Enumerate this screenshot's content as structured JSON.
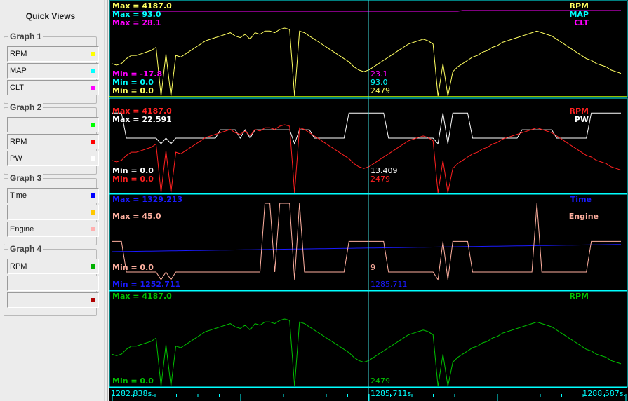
{
  "quick_views": {
    "title": "Quick Views",
    "groups": [
      {
        "title": "Graph 1",
        "items": [
          {
            "label": "RPM",
            "color": "#ffff00"
          },
          {
            "label": "MAP",
            "color": "#00ffff"
          },
          {
            "label": "CLT",
            "color": "#ff00ff"
          }
        ]
      },
      {
        "title": "Graph 2",
        "items": [
          {
            "label": "",
            "color": "#00ff00"
          },
          {
            "label": "RPM",
            "color": "#ff0000"
          },
          {
            "label": "PW",
            "color": "#ffffff"
          }
        ]
      },
      {
        "title": "Graph 3",
        "items": [
          {
            "label": "Time",
            "color": "#0000ff"
          },
          {
            "label": "",
            "color": "#ffc800"
          },
          {
            "label": "Engine",
            "color": "#ffafaf"
          }
        ]
      },
      {
        "title": "Graph 4",
        "items": [
          {
            "label": "RPM",
            "color": "#00b000"
          },
          {
            "label": "",
            "color": ""
          },
          {
            "label": "",
            "color": "#b00000"
          }
        ]
      }
    ]
  },
  "graphs": [
    {
      "border_color": "#c8ff00",
      "traces": [
        {
          "name": "RPM",
          "color": "#ffff60",
          "max": "Max = 4187.0",
          "min": "Min = 0.0",
          "cursor": "2479"
        },
        {
          "name": "MAP",
          "color": "#00ffff",
          "max": "Max = 93.0",
          "min": "Min = 0.0",
          "cursor": "93.0"
        },
        {
          "name": "CLT",
          "color": "#ff00ff",
          "max": "Max = 28.1",
          "min": "Min = -17.8",
          "cursor": "23.1"
        }
      ]
    },
    {
      "border_color": "#00ffff",
      "traces": [
        {
          "name": "RPM",
          "color": "#ff2020",
          "max": "Max = 4187.0",
          "min": "Min = 0.0",
          "cursor": "2479"
        },
        {
          "name": "PW",
          "color": "#ffffff",
          "max": "Max = 22.591",
          "min": "Min = 0.0",
          "cursor": "13.409"
        }
      ]
    },
    {
      "border_color": "#00ffff",
      "traces": [
        {
          "name": "Time",
          "color": "#1a1aff",
          "max": "Max = 1329.213",
          "min": "Min = 1252.711",
          "cursor": "1285.711"
        },
        {
          "name": "Engine",
          "color": "#ffb0a0",
          "max": "Max = 45.0",
          "min": "Min = 0.0",
          "cursor": "9"
        }
      ]
    },
    {
      "border_color": "#00ffff",
      "traces": [
        {
          "name": "RPM",
          "color": "#00c000",
          "max": "Max = 4187.0",
          "min": "Min = 0.0",
          "cursor": "2479"
        }
      ]
    }
  ],
  "time_axis": {
    "start": "1282.838s.",
    "cursor": "1285.711s",
    "end": "1288.587s."
  },
  "cursor_color": "#40e0e0",
  "chart_data": {
    "type": "line",
    "x_label_start": "1282.838s.",
    "x_label_end": "1288.587s.",
    "rpm": [
      2000,
      1900,
      2000,
      2300,
      2500,
      2500,
      2600,
      2700,
      2800,
      3000,
      0,
      2600,
      0,
      2500,
      2400,
      2600,
      2800,
      3000,
      3200,
      3400,
      3500,
      3600,
      3700,
      3800,
      3900,
      3700,
      3600,
      3800,
      3500,
      3900,
      3800,
      4000,
      4000,
      3900,
      4100,
      4187,
      4100,
      0,
      4000,
      3900,
      3700,
      3500,
      3300,
      3100,
      2900,
      2700,
      2500,
      2300,
      2100,
      1800,
      1600,
      1500,
      1600,
      1800,
      2000,
      2200,
      2400,
      2600,
      2800,
      3000,
      3200,
      3300,
      3400,
      3500,
      3400,
      3200,
      0,
      2000,
      0,
      1500,
      1800,
      2000,
      2200,
      2400,
      2500,
      2700,
      2800,
      3000,
      3100,
      3300,
      3400,
      3500,
      3600,
      3700,
      3800,
      3900,
      4000,
      3900,
      3800,
      3700,
      3500,
      3300,
      3100,
      2900,
      2700,
      2500,
      2300,
      2200,
      2000,
      1900,
      1800,
      1600,
      1500,
      1400
    ],
    "note": ""
  }
}
